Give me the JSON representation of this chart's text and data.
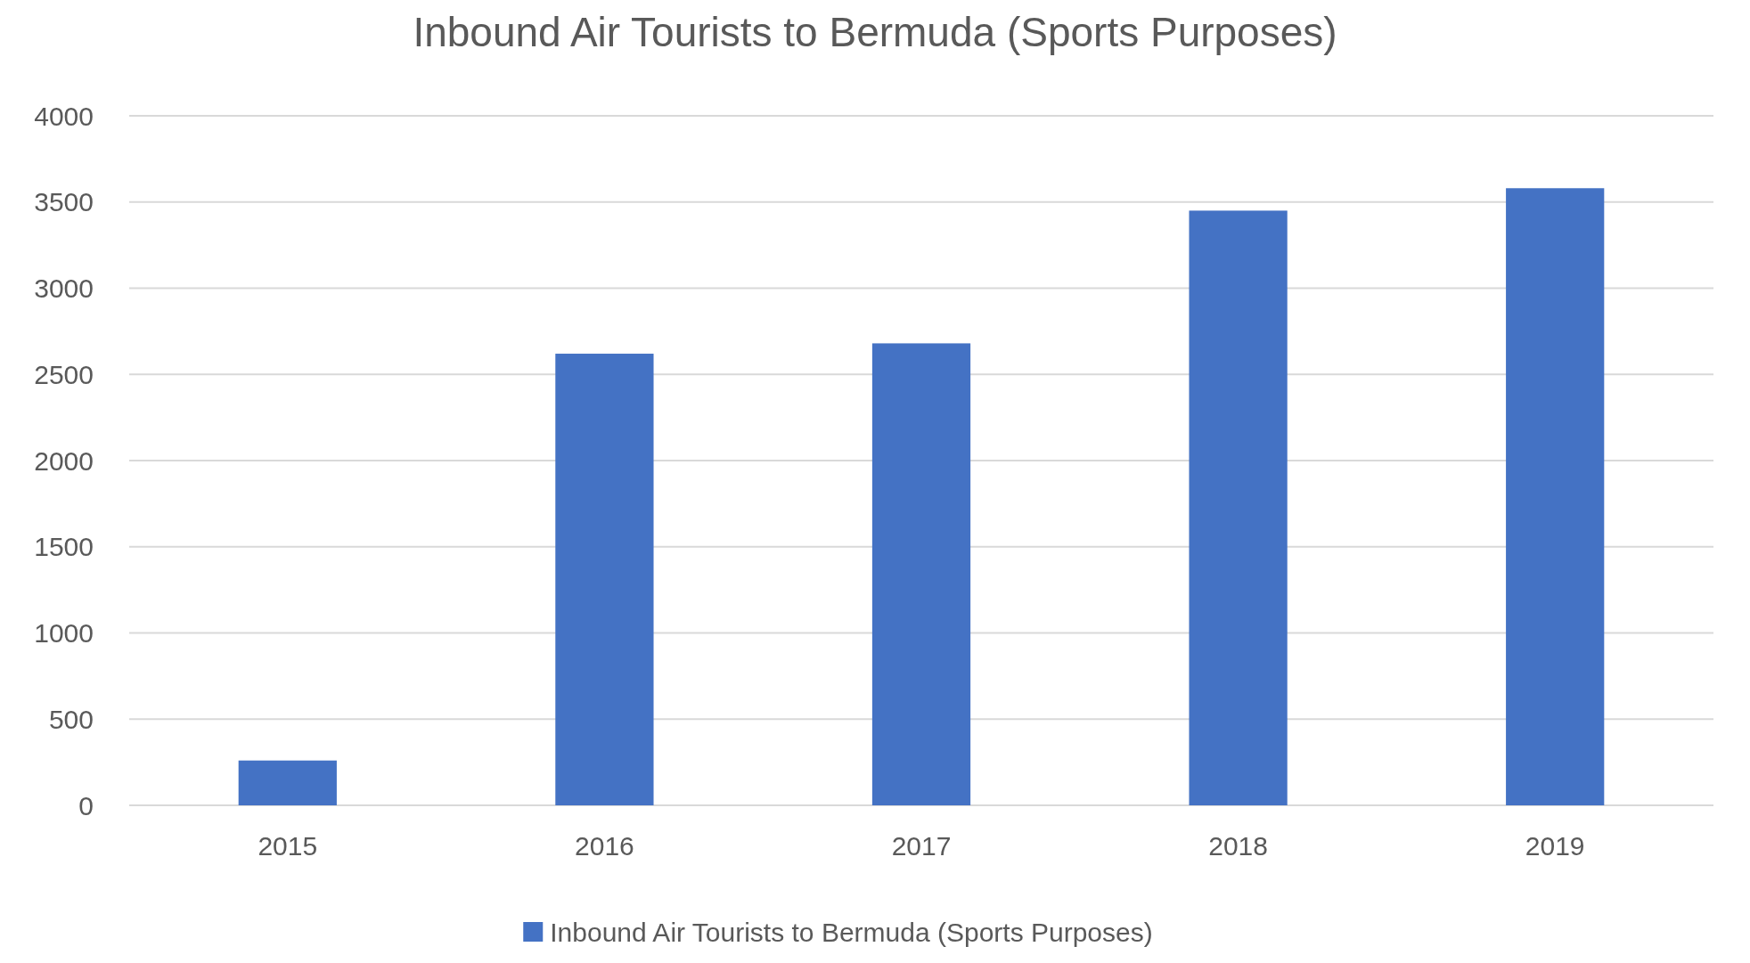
{
  "chart_data": {
    "type": "bar",
    "title": "Inbound Air Tourists to Bermuda (Sports Purposes)",
    "categories": [
      "2015",
      "2016",
      "2017",
      "2018",
      "2019"
    ],
    "series": [
      {
        "name": "Inbound Air Tourists to Bermuda (Sports Purposes)",
        "color": "#4472c4",
        "values": [
          260,
          2620,
          2680,
          3450,
          3580
        ]
      }
    ],
    "ylim": [
      0,
      4000
    ],
    "yticks": [
      0,
      500,
      1000,
      1500,
      2000,
      2500,
      3000,
      3500,
      4000
    ],
    "grid": "y",
    "legend": "bottom"
  }
}
